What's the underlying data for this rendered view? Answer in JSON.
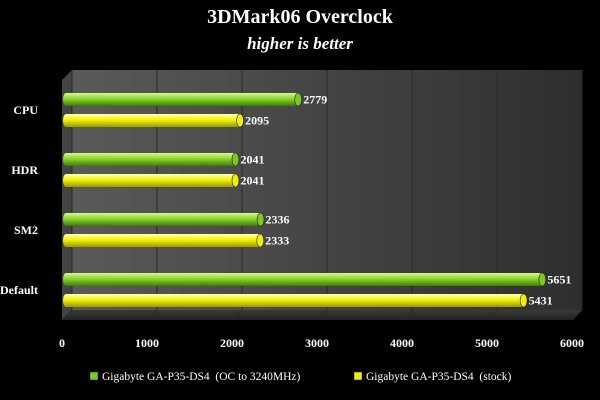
{
  "chart_data": {
    "type": "bar",
    "orientation": "horizontal",
    "title": "3DMark06 Overclock",
    "subtitle": "higher is better",
    "categories": [
      "CPU",
      "HDR",
      "SM2",
      "Default"
    ],
    "series": [
      {
        "name": "Gigabyte GA-P35-DS4  (OC to 3240MHz)",
        "values": [
          2779,
          2041,
          2336,
          5651
        ],
        "color": "#7ec820"
      },
      {
        "name": "Gigabyte GA-P35-DS4  (stock)",
        "values": [
          2095,
          2041,
          2333,
          5431
        ],
        "color": "#f0f000"
      }
    ],
    "xlim": [
      0,
      6000
    ],
    "xticks": [
      "0",
      "1000",
      "2000",
      "3000",
      "4000",
      "5000",
      "6000"
    ],
    "grid": true,
    "legend_position": "bottom",
    "xlabel": "",
    "ylabel": ""
  }
}
